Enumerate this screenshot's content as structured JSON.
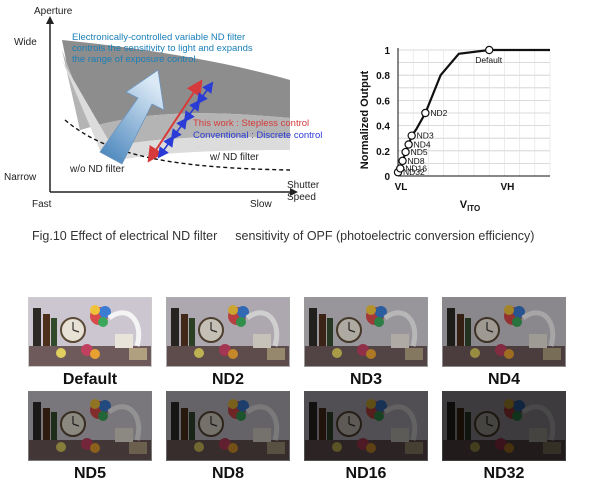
{
  "diagram": {
    "y_axis_label": "Aperture",
    "y_top": "Wide",
    "y_bottom": "Narrow",
    "x_left": "Fast",
    "x_right": "Slow",
    "x_axis_label_line1": "Shutter",
    "x_axis_label_line2": "Speed",
    "description_line1": "Electronically-controlled variable ND filter",
    "description_line2": "controls the sensitivity to light and expands",
    "description_line3": "the range of exposure control.",
    "stepless_label": "This work : Stepless control",
    "discrete_label": "Conventional : Discrete control",
    "wo_filter_label": "w/o ND filter",
    "w_filter_label": "w/ ND filter",
    "colors": {
      "description": "#1a7fb8",
      "stepless": "#d63a3a",
      "discrete": "#2a3bd6"
    }
  },
  "chart_data": {
    "type": "line",
    "ylabel": "Normalized Output",
    "xlabel_main": "V",
    "xlabel_sub": "ITO",
    "x_ticks": [
      "VL",
      "VH"
    ],
    "y_ticks": [
      "0",
      "0.1",
      "0.2",
      "0.3",
      "0.4",
      "0.5",
      "0.6",
      "0.7",
      "0.8",
      "0.9",
      "1"
    ],
    "ylim": [
      0,
      1
    ],
    "grid": true,
    "series": [
      {
        "points": [
          {
            "x": 0.0,
            "y": 0.03
          },
          {
            "x": 0.015,
            "y": 0.06
          },
          {
            "x": 0.03,
            "y": 0.12
          },
          {
            "x": 0.05,
            "y": 0.19
          },
          {
            "x": 0.07,
            "y": 0.25
          },
          {
            "x": 0.09,
            "y": 0.32
          },
          {
            "x": 0.12,
            "y": 0.37
          },
          {
            "x": 0.18,
            "y": 0.5
          },
          {
            "x": 0.28,
            "y": 0.8
          },
          {
            "x": 0.4,
            "y": 0.97
          },
          {
            "x": 0.6,
            "y": 1.0
          },
          {
            "x": 1.0,
            "y": 1.0
          }
        ]
      }
    ],
    "markers": [
      {
        "label": "ND32",
        "x": 0.0,
        "y": 0.03
      },
      {
        "label": "ND16",
        "x": 0.015,
        "y": 0.06
      },
      {
        "label": "ND8",
        "x": 0.03,
        "y": 0.12
      },
      {
        "label": "ND5",
        "x": 0.05,
        "y": 0.19
      },
      {
        "label": "ND4",
        "x": 0.07,
        "y": 0.25
      },
      {
        "label": "ND3",
        "x": 0.09,
        "y": 0.32
      },
      {
        "label": "ND2",
        "x": 0.18,
        "y": 0.5
      },
      {
        "label": "Default",
        "x": 0.6,
        "y": 1.0
      }
    ]
  },
  "caption": {
    "part1": "Fig.10 Effect of electrical ND filter",
    "part2": "sensitivity of OPF (photoelectric conversion efficiency)"
  },
  "photos": [
    {
      "label": "Default",
      "brightness": 1.0
    },
    {
      "label": "ND2",
      "brightness": 0.85
    },
    {
      "label": "ND3",
      "brightness": 0.75
    },
    {
      "label": "ND4",
      "brightness": 0.68
    },
    {
      "label": "ND5",
      "brightness": 0.6
    },
    {
      "label": "ND8",
      "brightness": 0.5
    },
    {
      "label": "ND16",
      "brightness": 0.4
    },
    {
      "label": "ND32",
      "brightness": 0.3
    }
  ]
}
